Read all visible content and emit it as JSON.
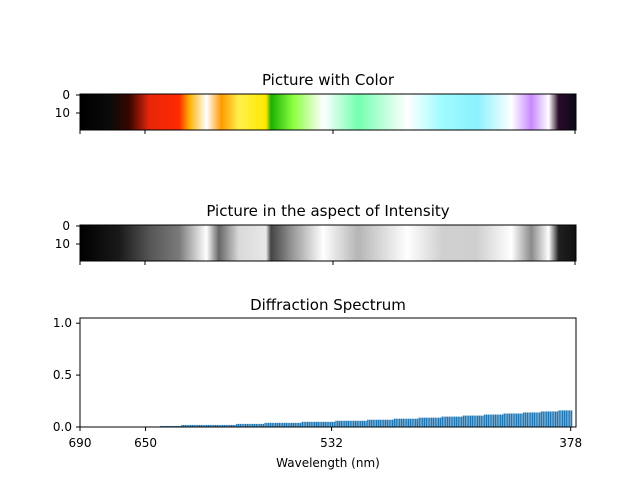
{
  "figure": {
    "panels": [
      {
        "title": "Picture with Color",
        "type": "image",
        "yticks": [
          "0",
          "10"
        ]
      },
      {
        "title": "Picture in the aspect of Intensity",
        "type": "image-grayscale",
        "yticks": [
          "0",
          "10"
        ]
      }
    ],
    "xlabel": "Wavelength (nm)",
    "xticks": [
      "690",
      "650",
      "532",
      "378"
    ]
  },
  "colors": {
    "bar": "#1f77b4"
  },
  "chart_data": {
    "type": "bar",
    "title": "Diffraction Spectrum",
    "xlabel": "Wavelength (nm)",
    "ylabel": "",
    "xlim": [
      0,
      280
    ],
    "ylim": [
      0,
      1.05
    ],
    "yticks": [
      0.0,
      0.5,
      1.0
    ],
    "xtick_positions": [
      0,
      37,
      142,
      277
    ],
    "xtick_labels": [
      "690",
      "650",
      "532",
      "378"
    ],
    "series": [
      {
        "values": [
          0.0,
          0.0,
          0.0,
          0.0,
          0.0,
          0.0,
          0.0,
          0.0,
          0.0,
          0.0,
          0.0,
          0.0,
          0.0,
          0.0,
          0.0,
          0.0,
          0.0,
          0.0,
          0.0,
          0.0,
          0.0,
          0.0,
          0.0,
          0.0,
          0.0,
          0.0,
          0.0,
          0.0,
          0.0,
          0.0,
          0.0,
          0.0,
          0.0,
          0.0,
          0.0,
          0.0,
          0.0,
          0.0,
          0.0,
          0.0,
          0.0,
          0.0,
          0.0,
          0.0,
          0.0,
          0.01,
          0.01,
          0.01,
          0.01,
          0.01,
          0.01,
          0.01,
          0.01,
          0.01,
          0.01,
          0.01,
          0.01,
          0.02,
          0.02,
          0.02,
          0.02,
          0.02,
          0.02,
          0.02,
          0.02,
          0.02,
          0.02,
          0.02,
          0.02,
          0.02,
          0.02,
          0.02,
          0.02,
          0.02,
          0.02,
          0.02,
          0.02,
          0.02,
          0.02,
          0.02,
          0.02,
          0.02,
          0.02,
          0.02,
          0.02,
          0.02,
          0.02,
          0.02,
          0.03,
          0.03,
          0.03,
          0.03,
          0.03,
          0.03,
          0.03,
          0.03,
          0.03,
          0.03,
          0.03,
          0.03,
          0.03,
          0.03,
          0.03,
          0.03,
          0.04,
          0.04,
          0.04,
          0.04,
          0.04,
          0.04,
          0.04,
          0.04,
          0.04,
          0.04,
          0.04,
          0.04,
          0.04,
          0.04,
          0.04,
          0.04,
          0.04,
          0.04,
          0.04,
          0.04,
          0.04,
          0.05,
          0.05,
          0.05,
          0.05,
          0.05,
          0.05,
          0.05,
          0.05,
          0.05,
          0.05,
          0.05,
          0.05,
          0.05,
          0.05,
          0.05,
          0.05,
          0.05,
          0.05,
          0.05,
          0.06,
          0.06,
          0.06,
          0.06,
          0.06,
          0.06,
          0.06,
          0.06,
          0.06,
          0.06,
          0.06,
          0.06,
          0.06,
          0.06,
          0.06,
          0.06,
          0.06,
          0.06,
          0.07,
          0.07,
          0.07,
          0.07,
          0.07,
          0.07,
          0.07,
          0.07,
          0.07,
          0.07,
          0.07,
          0.07,
          0.07,
          0.07,
          0.07,
          0.08,
          0.08,
          0.08,
          0.08,
          0.08,
          0.08,
          0.08,
          0.08,
          0.08,
          0.08,
          0.08,
          0.08,
          0.08,
          0.08,
          0.09,
          0.09,
          0.09,
          0.09,
          0.09,
          0.09,
          0.09,
          0.09,
          0.09,
          0.09,
          0.09,
          0.09,
          0.09,
          0.1,
          0.1,
          0.1,
          0.1,
          0.1,
          0.1,
          0.1,
          0.1,
          0.1,
          0.1,
          0.1,
          0.1,
          0.11,
          0.11,
          0.11,
          0.11,
          0.11,
          0.11,
          0.11,
          0.11,
          0.11,
          0.11,
          0.11,
          0.11,
          0.12,
          0.12,
          0.12,
          0.12,
          0.12,
          0.12,
          0.12,
          0.12,
          0.12,
          0.12,
          0.12,
          0.13,
          0.13,
          0.13,
          0.13,
          0.13,
          0.13,
          0.13,
          0.13,
          0.13,
          0.13,
          0.13,
          0.14,
          0.14,
          0.14,
          0.14,
          0.14,
          0.14,
          0.14,
          0.14,
          0.14,
          0.14,
          0.15,
          0.15,
          0.15,
          0.15,
          0.15,
          0.15,
          0.15,
          0.15,
          0.15,
          0.15,
          0.16,
          0.16,
          0.16,
          0.16,
          0.16,
          0.16,
          0.16,
          0.16
        ]
      }
    ]
  }
}
